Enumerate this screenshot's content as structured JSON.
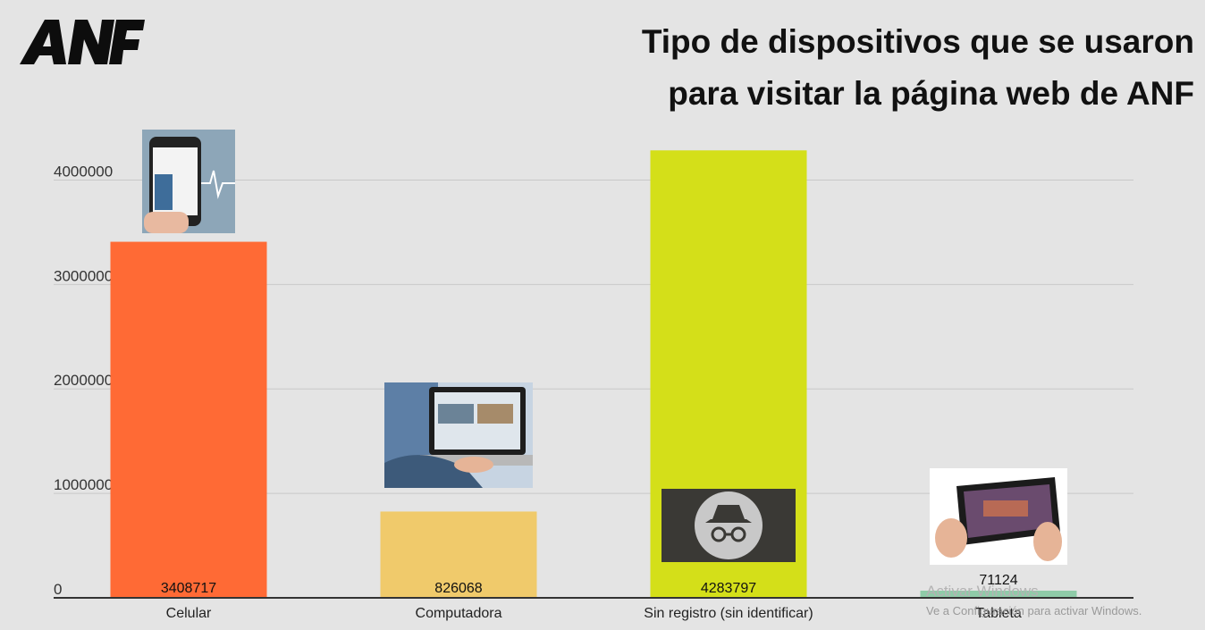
{
  "brand": {
    "logo_text": "ANF"
  },
  "title_lines": [
    "Tipo de dispositivos que se usaron",
    "para visitar la página web de ANF"
  ],
  "chart_data": {
    "type": "bar",
    "categories": [
      "Celular",
      "Computadora",
      "Sin registro (sin identificar)",
      "Tableta"
    ],
    "values": [
      3408717,
      826068,
      4283797,
      71124
    ],
    "value_labels": [
      "3408717",
      "826068",
      "4283797",
      "71124"
    ],
    "colors": [
      "#ff6a35",
      "#f0ca6b",
      "#d4df19",
      "#8fcba8"
    ],
    "icons": [
      "smartphone-photo-icon",
      "laptop-photo-icon",
      "incognito-icon",
      "tablet-photo-icon"
    ],
    "yticks": [
      0,
      1000000,
      2000000,
      3000000,
      4000000
    ],
    "ylim": [
      0,
      4500000
    ],
    "grid": true,
    "title": "Tipo de dispositivos que se usaron para visitar la página web de ANF"
  },
  "watermark": {
    "line1": "Activar Windows",
    "line2": "Ve a Configuración para activar Windows."
  }
}
